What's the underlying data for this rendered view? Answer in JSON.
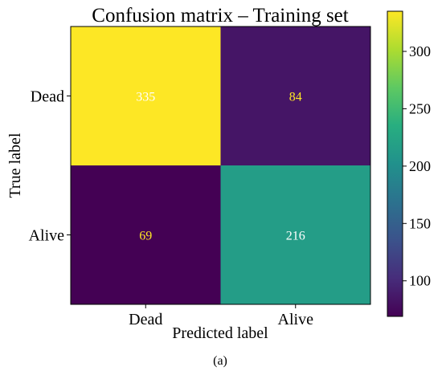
{
  "chart_data": {
    "type": "heatmap",
    "title": "Confusion matrix – Training set",
    "xlabel": "Predicted label",
    "ylabel": "True label",
    "x_categories": [
      "Dead",
      "Alive"
    ],
    "y_categories": [
      "Dead",
      "Alive"
    ],
    "values": [
      [
        335,
        84
      ],
      [
        69,
        216
      ]
    ],
    "colormap": "viridis",
    "colorbar": {
      "ticks": [
        100,
        150,
        200,
        250,
        300
      ],
      "range": [
        69,
        335
      ]
    },
    "annotation_colors": {
      "light_cell": "#ffffff",
      "dark_cell": "#fde725"
    }
  },
  "caption": "(a)"
}
